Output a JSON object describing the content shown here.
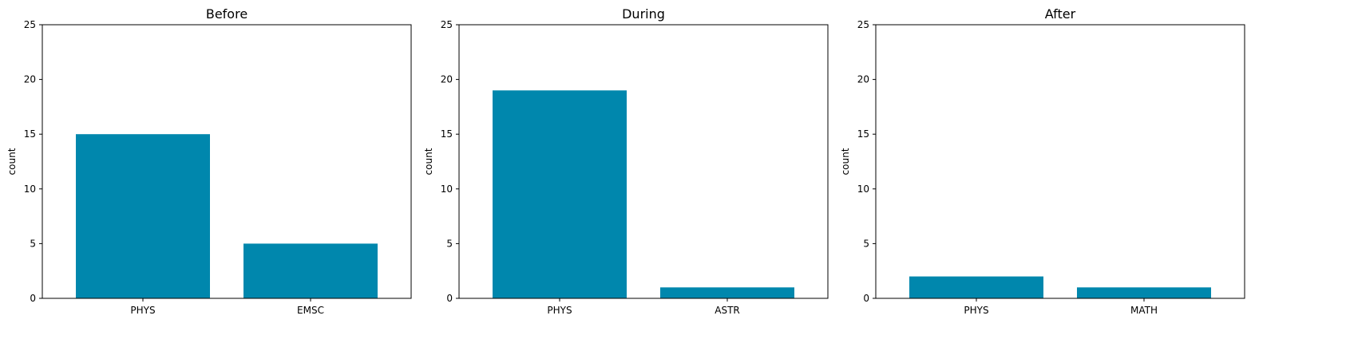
{
  "colors": {
    "bar": "#0087ad",
    "axis": "#000000",
    "background": "#ffffff"
  },
  "chart_data": [
    {
      "type": "bar",
      "title": "Before",
      "xlabel": "",
      "ylabel": "count",
      "categories": [
        "PHYS",
        "EMSC"
      ],
      "values": [
        15,
        5
      ],
      "ylim": [
        0,
        25
      ],
      "yticks": [
        0,
        5,
        10,
        15,
        20,
        25
      ],
      "grid": false
    },
    {
      "type": "bar",
      "title": "During",
      "xlabel": "",
      "ylabel": "count",
      "categories": [
        "PHYS",
        "ASTR"
      ],
      "values": [
        19,
        1
      ],
      "ylim": [
        0,
        25
      ],
      "yticks": [
        0,
        5,
        10,
        15,
        20,
        25
      ],
      "grid": false
    },
    {
      "type": "bar",
      "title": "After",
      "xlabel": "",
      "ylabel": "count",
      "categories": [
        "PHYS",
        "MATH"
      ],
      "values": [
        2,
        1
      ],
      "ylim": [
        0,
        25
      ],
      "yticks": [
        0,
        5,
        10,
        15,
        20,
        25
      ],
      "grid": false
    }
  ]
}
